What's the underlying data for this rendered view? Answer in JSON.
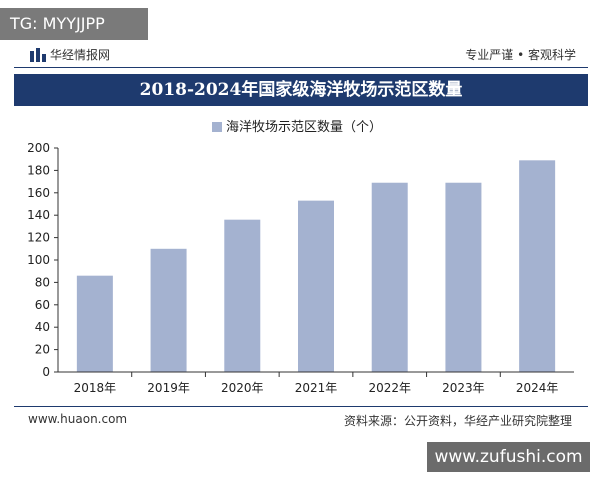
{
  "overlay": {
    "tg_label": "TG: MYYJJPP",
    "site_badge": "www.zufushi.com"
  },
  "header": {
    "brand": "华经情报网",
    "tagline": "专业严谨 • 客观科学"
  },
  "footer": {
    "website": "www.huaon.com",
    "source": "资料来源：公开资料，华经产业研究院整理"
  },
  "colors": {
    "navy": "#1e3a6e",
    "bar": "#a4b2d0"
  },
  "chart_data": {
    "type": "bar",
    "title": "2018-2024年国家级海洋牧场示范区数量",
    "categories": [
      "2018年",
      "2019年",
      "2020年",
      "2021年",
      "2022年",
      "2023年",
      "2024年"
    ],
    "series": [
      {
        "name": "海洋牧场示范区数量（个）",
        "values": [
          86,
          110,
          136,
          153,
          169,
          169,
          189
        ]
      }
    ],
    "yticks": [
      0,
      20,
      40,
      60,
      80,
      100,
      120,
      140,
      160,
      180,
      200
    ],
    "ylim": [
      0,
      200
    ],
    "legend_position": "top-center",
    "grid": false
  }
}
